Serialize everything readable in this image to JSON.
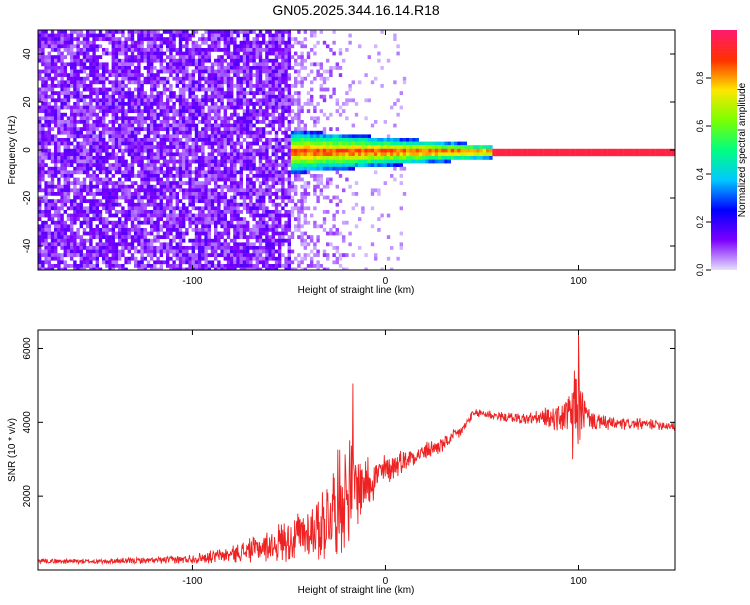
{
  "title": "GN05.2025.344.16.14.R18",
  "chart_data": [
    {
      "type": "heatmap",
      "xlabel": "Height of straight line (km)",
      "ylabel": "Frequency (Hz)",
      "xlim": [
        -180,
        150
      ],
      "ylim": [
        -50,
        50
      ],
      "xticks": [
        -100,
        0,
        100
      ],
      "yticks": [
        -40,
        -20,
        0,
        20,
        40
      ],
      "colorbar": {
        "label": "Normalized spectral amplitude",
        "range": [
          0.0,
          1.0
        ],
        "ticks": [
          0.0,
          0.2,
          0.4,
          0.6,
          0.8
        ],
        "tick_labels": [
          "0.0",
          "0.2",
          "0.4",
          "0.6",
          "0.8"
        ],
        "colormap": [
          "#e6e0ff",
          "#7b00ff",
          "#0000ff",
          "#00c8ff",
          "#00ff80",
          "#7cff00",
          "#ffe600",
          "#ff3000",
          "#ff1a70"
        ]
      },
      "features": {
        "noise_region_x": [
          -180,
          -50
        ],
        "signal_line_frequency_hz": 0,
        "signal_line_x": [
          55,
          150
        ]
      }
    },
    {
      "type": "line",
      "xlabel": "Height of straight line (km)",
      "ylabel": "SNR (10 * v/v)",
      "xlim": [
        -180,
        150
      ],
      "ylim": [
        0,
        6500
      ],
      "xticks": [
        -100,
        0,
        100
      ],
      "yticks": [
        2000,
        4000,
        6000
      ],
      "color": "#ee2222",
      "series": [
        {
          "x": [
            -180,
            -150,
            -120,
            -100,
            -80,
            -60,
            -50,
            -40,
            -30,
            -25,
            -20,
            -15,
            -10,
            0,
            10,
            20,
            30,
            40,
            45,
            50,
            60,
            70,
            80,
            90,
            95,
            100,
            105,
            110,
            120,
            130,
            140,
            150
          ],
          "y": [
            250,
            230,
            260,
            300,
            420,
            650,
            850,
            1000,
            1400,
            1800,
            2100,
            2300,
            2400,
            2700,
            3000,
            3200,
            3400,
            3800,
            4200,
            4250,
            4150,
            4100,
            4100,
            4150,
            4200,
            4400,
            4100,
            4000,
            3950,
            3950,
            3950,
            3900
          ],
          "spread": [
            80,
            80,
            100,
            150,
            250,
            500,
            700,
            900,
            1300,
            1600,
            1800,
            1300,
            900,
            500,
            350,
            300,
            250,
            200,
            150,
            150,
            150,
            180,
            250,
            500,
            700,
            1200,
            400,
            250,
            200,
            180,
            170,
            160
          ]
        }
      ],
      "spikes": [
        {
          "x": -17,
          "y": 5050
        },
        {
          "x": 100,
          "y": 6450
        },
        {
          "x": 98,
          "y": 5400
        },
        {
          "x": 97,
          "y": 3000
        }
      ]
    }
  ]
}
